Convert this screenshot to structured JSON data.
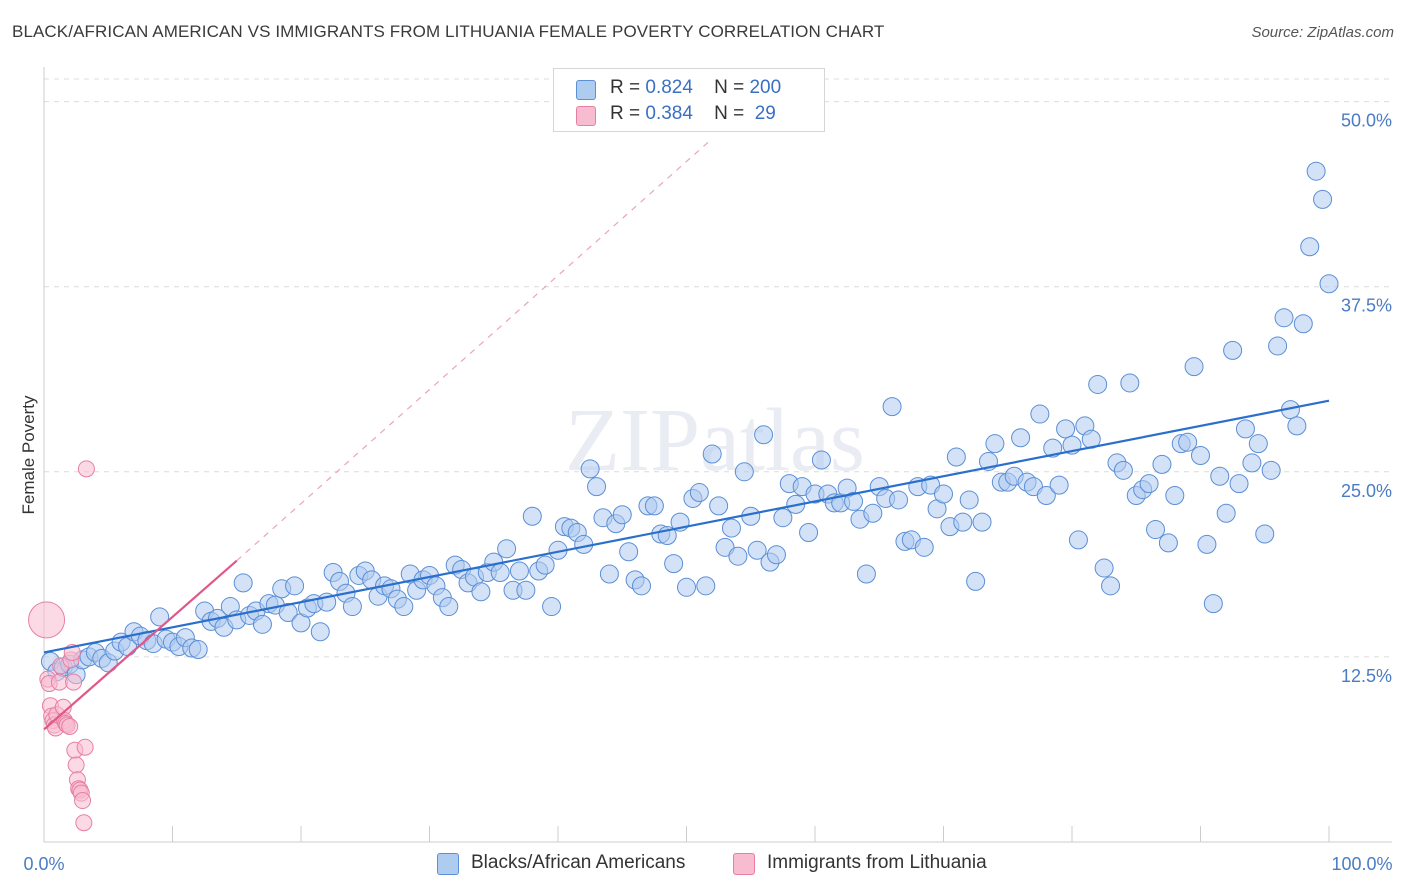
{
  "title": "BLACK/AFRICAN AMERICAN VS IMMIGRANTS FROM LITHUANIA FEMALE POVERTY CORRELATION CHART",
  "source": "Source: ZipAtlas.com",
  "watermark": "ZIPatlas",
  "legend": {
    "rows": [
      {
        "r_label": "R =",
        "r_value": "0.824",
        "n_label": "N =",
        "n_value": "200"
      },
      {
        "r_label": "R =",
        "r_value": "0.384",
        "n_label": "N =",
        "n_value": " 29"
      }
    ]
  },
  "bottom_legend": [
    {
      "label": "Blacks/African Americans"
    },
    {
      "label": "Immigrants from Lithuania"
    }
  ],
  "colors": {
    "blue_fill": "#aecbf0",
    "blue_stroke": "#5b8fd6",
    "blue_line": "#2a6fcc",
    "pink_fill": "#f7bcd0",
    "pink_stroke": "#e87fa3",
    "pink_line": "#e0578a",
    "grid": "#dcdcdc",
    "tick_label": "#4a7cc4"
  },
  "chart_data": {
    "type": "scatter",
    "title": "BLACK/AFRICAN AMERICAN VS IMMIGRANTS FROM LITHUANIA FEMALE POVERTY CORRELATION CHART",
    "xlabel": "",
    "ylabel": "Female Poverty",
    "xlim": [
      0,
      100
    ],
    "ylim": [
      0,
      52
    ],
    "x_tick_labels": [
      "0.0%",
      "100.0%"
    ],
    "y_ticks": [
      12.5,
      25.0,
      37.5,
      50.0
    ],
    "y_tick_labels": [
      "12.5%",
      "25.0%",
      "37.5%",
      "50.0%"
    ],
    "grid": true,
    "legend_position": "top-center",
    "series": [
      {
        "name": "Blacks/African Americans",
        "r": 0.824,
        "n": 200,
        "trend": [
          [
            0,
            12.8
          ],
          [
            100,
            29.8
          ]
        ],
        "points": [
          [
            0.5,
            12.2
          ],
          [
            1,
            11.5
          ],
          [
            1.5,
            11.8
          ],
          [
            2,
            12
          ],
          [
            2.5,
            11.3
          ],
          [
            3,
            12.3
          ],
          [
            3.5,
            12.5
          ],
          [
            4,
            12.8
          ],
          [
            4.5,
            12.4
          ],
          [
            5,
            12.1
          ],
          [
            5.5,
            12.9
          ],
          [
            6,
            13.5
          ],
          [
            6.5,
            13.2
          ],
          [
            7,
            14.2
          ],
          [
            7.5,
            13.9
          ],
          [
            8,
            13.6
          ],
          [
            8.5,
            13.4
          ],
          [
            9,
            15.2
          ],
          [
            9.5,
            13.7
          ],
          [
            10,
            13.5
          ],
          [
            10.5,
            13.2
          ],
          [
            11,
            13.8
          ],
          [
            11.5,
            13.1
          ],
          [
            12,
            13
          ],
          [
            12.5,
            15.6
          ],
          [
            13,
            14.9
          ],
          [
            13.5,
            15.1
          ],
          [
            14,
            14.5
          ],
          [
            14.5,
            15.9
          ],
          [
            15,
            15
          ],
          [
            15.5,
            17.5
          ],
          [
            16,
            15.3
          ],
          [
            16.5,
            15.6
          ],
          [
            17,
            14.7
          ],
          [
            17.5,
            16.1
          ],
          [
            18,
            16
          ],
          [
            18.5,
            17.1
          ],
          [
            19,
            15.5
          ],
          [
            19.5,
            17.3
          ],
          [
            20,
            14.8
          ],
          [
            20.5,
            15.8
          ],
          [
            21,
            16.1
          ],
          [
            21.5,
            14.2
          ],
          [
            22,
            16.2
          ],
          [
            22.5,
            18.2
          ],
          [
            23,
            17.6
          ],
          [
            23.5,
            16.8
          ],
          [
            24,
            15.9
          ],
          [
            24.5,
            18
          ],
          [
            25,
            18.3
          ],
          [
            25.5,
            17.7
          ],
          [
            26,
            16.6
          ],
          [
            26.5,
            17.3
          ],
          [
            27,
            17.1
          ],
          [
            27.5,
            16.4
          ],
          [
            28,
            15.9
          ],
          [
            28.5,
            18.1
          ],
          [
            29,
            17
          ],
          [
            29.5,
            17.7
          ],
          [
            30,
            18
          ],
          [
            30.5,
            17.3
          ],
          [
            31,
            16.5
          ],
          [
            31.5,
            15.9
          ],
          [
            32,
            18.7
          ],
          [
            32.5,
            18.4
          ],
          [
            33,
            17.5
          ],
          [
            33.5,
            17.9
          ],
          [
            34,
            16.9
          ],
          [
            34.5,
            18.2
          ],
          [
            35,
            18.9
          ],
          [
            35.5,
            18.2
          ],
          [
            36,
            19.8
          ],
          [
            36.5,
            17
          ],
          [
            37,
            18.3
          ],
          [
            37.5,
            17
          ],
          [
            38,
            22
          ],
          [
            38.5,
            18.3
          ],
          [
            39,
            18.7
          ],
          [
            39.5,
            15.9
          ],
          [
            40,
            19.7
          ],
          [
            40.5,
            21.3
          ],
          [
            41,
            21.2
          ],
          [
            41.5,
            20.9
          ],
          [
            42,
            20.1
          ],
          [
            42.5,
            25.2
          ],
          [
            43,
            24
          ],
          [
            43.5,
            21.9
          ],
          [
            44,
            18.1
          ],
          [
            44.5,
            21.5
          ],
          [
            45,
            22.1
          ],
          [
            45.5,
            19.6
          ],
          [
            46,
            17.7
          ],
          [
            46.5,
            17.3
          ],
          [
            47,
            22.7
          ],
          [
            47.5,
            22.7
          ],
          [
            48,
            20.8
          ],
          [
            48.5,
            20.7
          ],
          [
            49,
            18.8
          ],
          [
            49.5,
            21.6
          ],
          [
            50,
            17.2
          ],
          [
            50.5,
            23.2
          ],
          [
            51,
            23.6
          ],
          [
            51.5,
            17.3
          ],
          [
            52,
            26.2
          ],
          [
            52.5,
            22.7
          ],
          [
            53,
            19.9
          ],
          [
            53.5,
            21.2
          ],
          [
            54,
            19.3
          ],
          [
            54.5,
            25
          ],
          [
            55,
            22
          ],
          [
            55.5,
            19.7
          ],
          [
            56,
            27.5
          ],
          [
            56.5,
            18.9
          ],
          [
            57,
            19.4
          ],
          [
            57.5,
            21.9
          ],
          [
            58,
            24.2
          ],
          [
            58.5,
            22.8
          ],
          [
            59,
            24
          ],
          [
            59.5,
            20.9
          ],
          [
            60,
            23.5
          ],
          [
            60.5,
            25.8
          ],
          [
            61,
            23.5
          ],
          [
            61.5,
            22.9
          ],
          [
            62,
            22.9
          ],
          [
            62.5,
            23.9
          ],
          [
            63,
            23
          ],
          [
            63.5,
            21.8
          ],
          [
            64,
            18.1
          ],
          [
            64.5,
            22.2
          ],
          [
            65,
            24
          ],
          [
            65.5,
            23.2
          ],
          [
            66,
            29.4
          ],
          [
            66.5,
            23.1
          ],
          [
            67,
            20.3
          ],
          [
            67.5,
            20.4
          ],
          [
            68,
            24
          ],
          [
            68.5,
            19.9
          ],
          [
            69,
            24.1
          ],
          [
            69.5,
            22.5
          ],
          [
            70,
            23.5
          ],
          [
            70.5,
            21.3
          ],
          [
            71,
            26
          ],
          [
            71.5,
            21.6
          ],
          [
            72,
            23.1
          ],
          [
            72.5,
            17.6
          ],
          [
            73,
            21.6
          ],
          [
            73.5,
            25.7
          ],
          [
            74,
            26.9
          ],
          [
            74.5,
            24.3
          ],
          [
            75,
            24.3
          ],
          [
            75.5,
            24.7
          ],
          [
            76,
            27.3
          ],
          [
            76.5,
            24.3
          ],
          [
            77,
            24
          ],
          [
            77.5,
            28.9
          ],
          [
            78,
            23.4
          ],
          [
            78.5,
            26.6
          ],
          [
            79,
            24.1
          ],
          [
            79.5,
            27.9
          ],
          [
            80,
            26.8
          ],
          [
            80.5,
            20.4
          ],
          [
            81,
            28.1
          ],
          [
            81.5,
            27.2
          ],
          [
            82,
            30.9
          ],
          [
            82.5,
            18.5
          ],
          [
            83,
            17.3
          ],
          [
            83.5,
            25.6
          ],
          [
            84,
            25.1
          ],
          [
            84.5,
            31
          ],
          [
            85,
            23.4
          ],
          [
            85.5,
            23.8
          ],
          [
            86,
            24.2
          ],
          [
            86.5,
            21.1
          ],
          [
            87,
            25.5
          ],
          [
            87.5,
            20.2
          ],
          [
            88,
            23.4
          ],
          [
            88.5,
            26.9
          ],
          [
            89,
            27
          ],
          [
            89.5,
            32.1
          ],
          [
            90,
            26.1
          ],
          [
            90.5,
            20.1
          ],
          [
            91,
            16.1
          ],
          [
            91.5,
            24.7
          ],
          [
            92,
            22.2
          ],
          [
            92.5,
            33.2
          ],
          [
            93,
            24.2
          ],
          [
            93.5,
            27.9
          ],
          [
            94,
            25.6
          ],
          [
            94.5,
            26.9
          ],
          [
            95,
            20.8
          ],
          [
            95.5,
            25.1
          ],
          [
            96,
            33.5
          ],
          [
            96.5,
            35.4
          ],
          [
            97,
            29.2
          ],
          [
            97.5,
            28.1
          ],
          [
            98,
            35
          ],
          [
            98.5,
            40.2
          ],
          [
            99,
            45.3
          ],
          [
            99.5,
            43.4
          ],
          [
            100,
            37.7
          ]
        ]
      },
      {
        "name": "Immigrants from Lithuania",
        "r": 0.384,
        "n": 29,
        "trend": [
          [
            0,
            7.6
          ],
          [
            15,
            19
          ]
        ],
        "trend_extended": [
          [
            15,
            19
          ],
          [
            52,
            47.5
          ]
        ],
        "points": [
          [
            0.2,
            15
          ],
          [
            0.3,
            11
          ],
          [
            0.4,
            10.7
          ],
          [
            0.5,
            9.2
          ],
          [
            0.6,
            8.5
          ],
          [
            0.7,
            8.2
          ],
          [
            0.8,
            7.9
          ],
          [
            0.9,
            7.7
          ],
          [
            1,
            8.6
          ],
          [
            1.2,
            10.8
          ],
          [
            1.3,
            11.9
          ],
          [
            1.5,
            9.1
          ],
          [
            1.6,
            8.2
          ],
          [
            1.7,
            8
          ],
          [
            1.8,
            7.9
          ],
          [
            2,
            7.8
          ],
          [
            2.1,
            12.3
          ],
          [
            2.2,
            12.8
          ],
          [
            2.3,
            10.8
          ],
          [
            2.4,
            6.2
          ],
          [
            2.5,
            5.2
          ],
          [
            2.6,
            4.2
          ],
          [
            2.7,
            3.6
          ],
          [
            2.8,
            3.5
          ],
          [
            2.9,
            3.3
          ],
          [
            3,
            2.8
          ],
          [
            3.1,
            1.3
          ],
          [
            3.2,
            6.4
          ],
          [
            3.3,
            25.2
          ]
        ]
      }
    ]
  }
}
